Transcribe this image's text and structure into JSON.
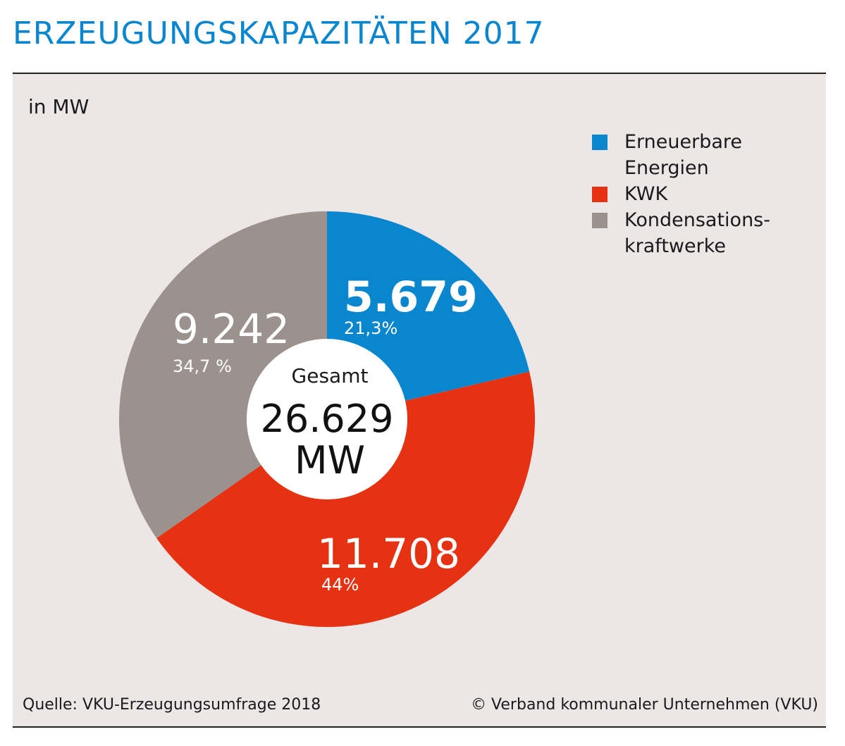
{
  "title": "ERZEUGUNGSKAPAZITÄTEN 2017",
  "unit_label": "in MW",
  "legend": [
    {
      "label": "Erneuerbare Energien",
      "color": "#0a86cf"
    },
    {
      "label": "KWK",
      "color": "#e53212"
    },
    {
      "label": "Kondensations-kraftwerke",
      "color": "#9b918d"
    }
  ],
  "chart_data": {
    "type": "pie",
    "categories": [
      "Erneuerbare Energien",
      "KWK",
      "Kondensations-kraftwerke"
    ],
    "values": [
      5679,
      11708,
      9242
    ],
    "value_labels": [
      "5.679",
      "11.708",
      "9.242"
    ],
    "percent_labels": [
      "21,3%",
      "44%",
      "34,7 %"
    ],
    "colors": [
      "#0a86cf",
      "#e53212",
      "#9b918d"
    ],
    "center": {
      "label": "Gesamt",
      "value": "26.629",
      "unit": "MW"
    },
    "legend_position": "top-right"
  },
  "footer": {
    "source": "Quelle: VKU-Erzeugungsumfrage 2018",
    "copyright": "© Verband kommunaler Unternehmen (VKU)"
  }
}
